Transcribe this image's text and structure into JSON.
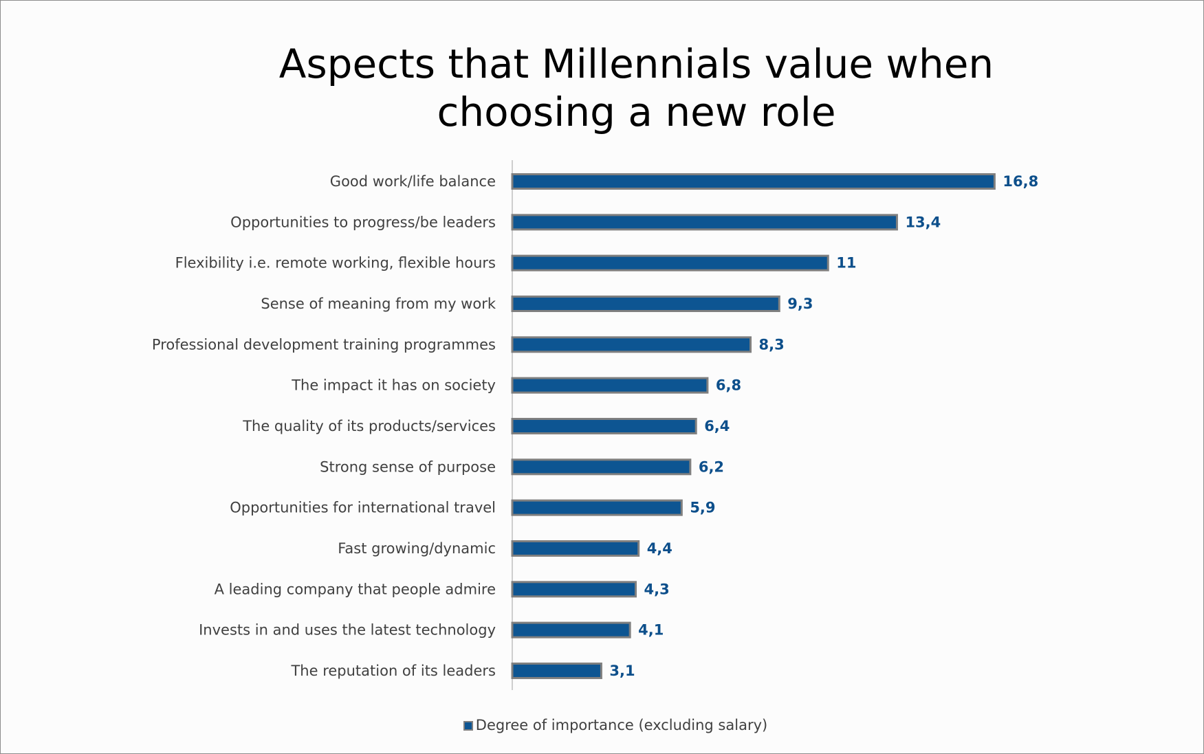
{
  "chart_data": {
    "type": "bar",
    "orientation": "horizontal",
    "title_lines": [
      "Aspects that Millennials value when",
      "choosing a new role"
    ],
    "categories": [
      "Good work/life balance",
      "Opportunities to progress/be leaders",
      "Flexibility i.e. remote working, flexible hours",
      "Sense of meaning from my work",
      "Professional development training programmes",
      "The impact it has on society",
      "The quality of its products/services",
      "Strong sense of purpose",
      "Opportunities for international travel",
      "Fast growing/dynamic",
      "A leading company that people admire",
      "Invests in and uses the latest technology",
      "The reputation of its leaders"
    ],
    "series": [
      {
        "name": "Degree of importance (excluding salary)",
        "values": [
          16.8,
          13.4,
          11,
          9.3,
          8.3,
          6.8,
          6.4,
          6.2,
          5.9,
          4.4,
          4.3,
          4.1,
          3.1
        ],
        "value_labels": [
          "16,8",
          "13,4",
          "11",
          "9,3",
          "8,3",
          "6,8",
          "6,4",
          "6,2",
          "5,9",
          "4,4",
          "4,3",
          "4,1",
          "3,1"
        ]
      }
    ],
    "xlim": [
      0,
      18
    ],
    "grid": false,
    "legend_position": "bottom",
    "colors": {
      "bar_fill": "#0d5592",
      "bar_border": "#7f7f7f",
      "value_label": "#0d4f8b",
      "category_label": "#404040",
      "axis": "#bfbfbf"
    }
  }
}
